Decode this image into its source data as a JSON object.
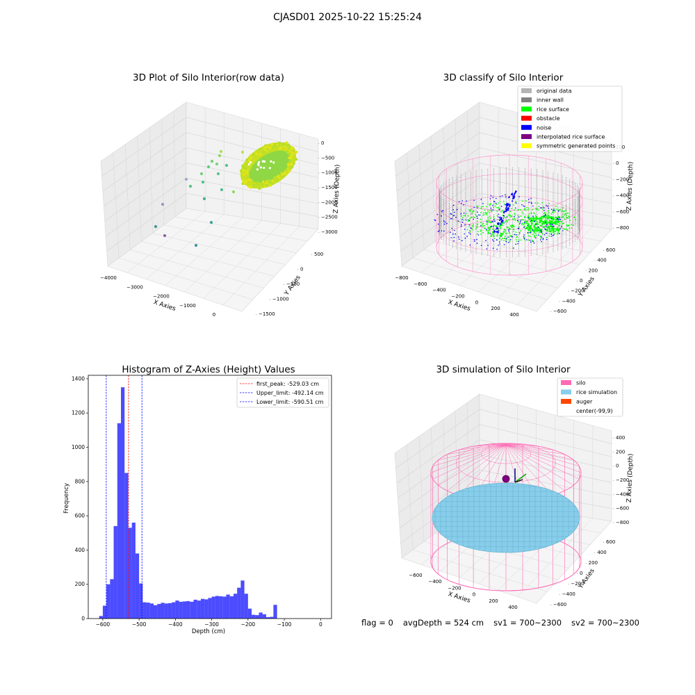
{
  "figure": {
    "suptitle": "CJASD01 2025-10-22 15:25:24",
    "status_bar": {
      "flag": "flag = 0",
      "avg_depth": "avgDepth = 524 cm",
      "sv1": "sv1 = 700~2300",
      "sv2": "sv2 = 700~2300"
    }
  },
  "chart_data": [
    {
      "type": "scatter",
      "projection": "3d",
      "title": "3D Plot of Silo Interior(row data)",
      "xlabel": "X Axies",
      "ylabel": "Y Axies",
      "zlabel": "Z Axies (Depth)",
      "x_ticks": [
        "−4000",
        "−3000",
        "−2000",
        "−1000",
        "0"
      ],
      "y_ticks": [
        "500",
        "0",
        "−500",
        "−1000",
        "−1500"
      ],
      "z_ticks": [
        "0",
        "−500",
        "−1000",
        "−1500",
        "−2000",
        "−2500",
        "−3000"
      ],
      "colormap": "viridis",
      "colors": {
        "low": "#440154",
        "mid": "#21918c",
        "high": "#fde725"
      }
    },
    {
      "type": "scatter",
      "projection": "3d",
      "title": "3D classify of Silo Interior",
      "xlabel": "X Axies",
      "ylabel": "Y Axies",
      "zlabel": "Z Axies (Depth)",
      "x_ticks": [
        "−800",
        "−600",
        "−400",
        "−200",
        "0",
        "200",
        "400"
      ],
      "y_ticks": [
        "600",
        "400",
        "200",
        "0",
        "−200",
        "−400",
        "−600"
      ],
      "z_ticks": [
        "200",
        "0",
        "−200",
        "−400",
        "−600",
        "−800"
      ],
      "legend_position": "top-right",
      "legend": [
        {
          "label": "original data",
          "color": "#b4b4b4"
        },
        {
          "label": "inner wall",
          "color": "#808080"
        },
        {
          "label": "rice surface",
          "color": "#00ff00"
        },
        {
          "label": "obstacle",
          "color": "#ff0000"
        },
        {
          "label": "noise",
          "color": "#0000ff"
        },
        {
          "label": "interpolated rice surface",
          "color": "#800080"
        },
        {
          "label": "symmetric generated points",
          "color": "#ffff00"
        }
      ],
      "wireframe_color": "#ff8fc8"
    },
    {
      "type": "bar",
      "title": "Histogram of Z-Axies (Height) Values",
      "xlabel": "Depth (cm)",
      "ylabel": "Frequency",
      "xlim": [
        -640,
        30
      ],
      "ylim": [
        0,
        1420
      ],
      "x_ticks": [
        -600,
        -500,
        -400,
        -300,
        -200,
        -100,
        0
      ],
      "y_ticks": [
        0,
        200,
        400,
        600,
        800,
        1000,
        1200,
        1400
      ],
      "bin_width": 10,
      "bin_start": -610,
      "values": [
        15,
        75,
        200,
        230,
        540,
        1140,
        1350,
        850,
        530,
        560,
        380,
        205,
        95,
        93,
        88,
        78,
        85,
        92,
        88,
        90,
        95,
        105,
        98,
        100,
        102,
        98,
        110,
        105,
        115,
        112,
        120,
        128,
        132,
        130,
        128,
        140,
        130,
        145,
        180,
        222,
        145,
        58,
        22,
        20,
        35,
        25,
        8,
        10,
        80
      ],
      "bar_color": "#0000ff",
      "legend_position": "top-right",
      "lines": [
        {
          "label": "first_peak: -529.03 cm",
          "x": -529.03,
          "color": "#ff0000"
        },
        {
          "label": "Upper_limit: -492.14 cm",
          "x": -492.14,
          "color": "#0000ff"
        },
        {
          "label": "Lower_limit: -590.51 cm",
          "x": -590.51,
          "color": "#0000ff"
        }
      ]
    },
    {
      "type": "scatter",
      "projection": "3d",
      "title": "3D simulation of Silo Interior",
      "xlabel": "X Axies",
      "ylabel": "Y Axies",
      "zlabel": "Z Axies (Depth)",
      "x_ticks": [
        "−600",
        "−400",
        "−200",
        "0",
        "200",
        "400"
      ],
      "y_ticks": [
        "600",
        "400",
        "200",
        "0",
        "−200",
        "−400",
        "−600"
      ],
      "z_ticks": [
        "400",
        "200",
        "0",
        "−200",
        "−400",
        "−600",
        "−800"
      ],
      "legend_position": "top-right",
      "legend": [
        {
          "label": "silo",
          "color": "#ff69b4"
        },
        {
          "label": "rice simulation",
          "color": "#87ceeb"
        },
        {
          "label": "auger",
          "color": "#ff4500"
        },
        {
          "label": "center(-99,9)",
          "color": "none"
        }
      ]
    }
  ]
}
